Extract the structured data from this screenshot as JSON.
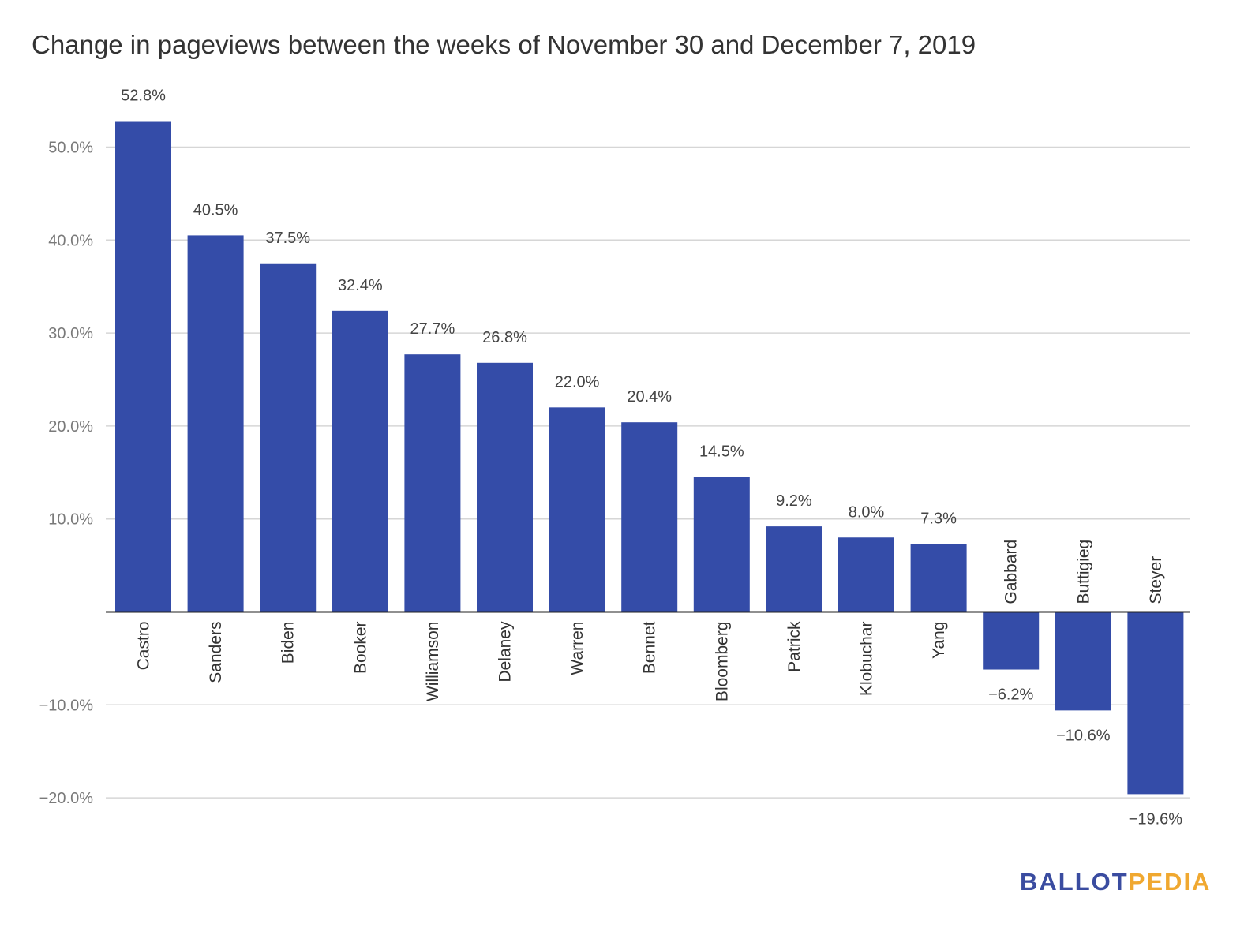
{
  "title": "Change in pageviews between the weeks of November 30 and December 7, 2019",
  "logo": {
    "part1": "BALLOT",
    "part2": "PEDIA",
    "part1_color": "#3a4ca0",
    "part2_color": "#f0a830"
  },
  "chart_data": {
    "type": "bar",
    "categories": [
      "Castro",
      "Sanders",
      "Biden",
      "Booker",
      "Williamson",
      "Delaney",
      "Warren",
      "Bennet",
      "Bloomberg",
      "Patrick",
      "Klobuchar",
      "Yang",
      "Gabbard",
      "Buttigieg",
      "Steyer"
    ],
    "values": [
      52.8,
      40.5,
      37.5,
      32.4,
      27.7,
      26.8,
      22.0,
      20.4,
      14.5,
      9.2,
      8.0,
      7.3,
      -6.2,
      -10.6,
      -19.6
    ],
    "value_labels": [
      "52.8%",
      "40.5%",
      "37.5%",
      "32.4%",
      "27.7%",
      "26.8%",
      "22.0%",
      "20.4%",
      "14.5%",
      "9.2%",
      "8.0%",
      "7.3%",
      "−6.2%",
      "−10.6%",
      "−19.6%"
    ],
    "y_ticks": [
      50,
      40,
      30,
      20,
      10,
      -10,
      -20
    ],
    "y_tick_labels": [
      "50.0%",
      "40.0%",
      "30.0%",
      "20.0%",
      "10.0%",
      "−10.0%",
      "−20.0%"
    ],
    "ylim": [
      -20,
      52.8
    ],
    "grid": true,
    "bar_color": "#344ca8"
  }
}
